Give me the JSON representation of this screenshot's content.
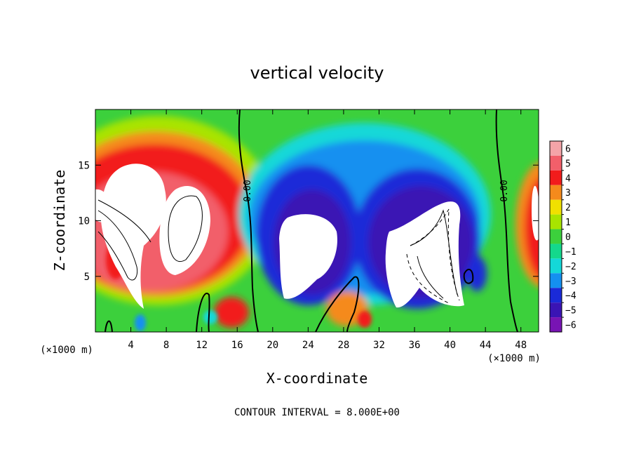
{
  "chart_data": {
    "type": "heatmap",
    "title": "vertical velocity",
    "xlabel": "X-coordinate",
    "ylabel": "Z-coordinate",
    "x_unit_note": "(×1000 m)",
    "z_unit_note": "(×1000 m)",
    "xlim": [
      0,
      50
    ],
    "ylim": [
      0,
      20
    ],
    "x_ticks": [
      4,
      8,
      12,
      16,
      20,
      24,
      28,
      32,
      36,
      40,
      44,
      48
    ],
    "x_tick_labels": [
      "4",
      "8",
      "12",
      "16",
      "20",
      "24",
      "28",
      "32",
      "36",
      "40",
      "44",
      "48"
    ],
    "y_ticks": [
      5,
      10,
      15
    ],
    "y_tick_labels": [
      "5",
      "10",
      "15"
    ],
    "colorbar": {
      "levels": [
        6,
        5,
        4,
        3,
        2,
        1,
        0,
        -1,
        -2,
        -3,
        -4,
        -5,
        -6
      ],
      "labels": [
        "6",
        "5",
        "4",
        "3",
        "2",
        "1",
        "0",
        "−1",
        "−2",
        "−3",
        "−4",
        "−5",
        "−6"
      ],
      "colors": [
        "#f4a4a8",
        "#f25f6a",
        "#f21c1c",
        "#f58a1c",
        "#f0e000",
        "#a8e400",
        "#3cd03c",
        "#14d88c",
        "#14d8d8",
        "#1490f0",
        "#1a2ad8",
        "#3a14b4",
        "#7814b4"
      ]
    },
    "contour_labels": [
      "0.00",
      "0.00"
    ],
    "contour_interval_text": "CONTOUR INTERVAL = 8.000E+00"
  }
}
